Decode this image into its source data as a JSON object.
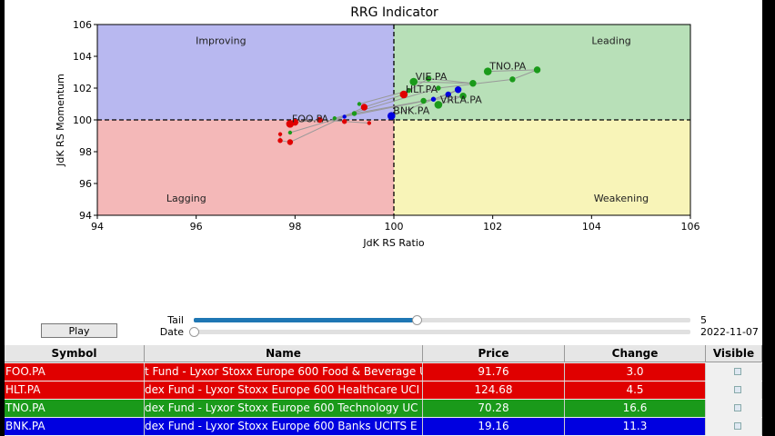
{
  "chart_data": {
    "type": "scatter",
    "title": "RRG Indicator",
    "xlabel": "JdK RS Ratio",
    "ylabel": "JdK RS Momentum",
    "xlim": [
      94,
      106
    ],
    "ylim": [
      94,
      106
    ],
    "xticks": [
      "94",
      "96",
      "98",
      "100",
      "102",
      "104",
      "106"
    ],
    "yticks": [
      "94",
      "96",
      "98",
      "100",
      "102",
      "104",
      "106"
    ],
    "quadrants": [
      {
        "name": "Improving",
        "color": "#b8b8f0"
      },
      {
        "name": "Leading",
        "color": "#b8e0b8"
      },
      {
        "name": "Lagging",
        "color": "#f4b8b8"
      },
      {
        "name": "Weakening",
        "color": "#f8f4b8"
      }
    ],
    "series": [
      {
        "name": "FOO.PA",
        "color": "#e00000",
        "points": [
          [
            99.5,
            99.8
          ],
          [
            99.0,
            99.9
          ],
          [
            98.5,
            100.0
          ],
          [
            98.0,
            99.85
          ],
          [
            97.9,
            99.75
          ]
        ]
      },
      {
        "name": "HLT.PA",
        "color": "#e00000",
        "points": [
          [
            97.7,
            99.1
          ],
          [
            97.7,
            98.7
          ],
          [
            97.9,
            98.6
          ],
          [
            99.4,
            100.8
          ],
          [
            100.2,
            101.6
          ]
        ]
      },
      {
        "name": "TNO.PA",
        "color": "#1a9a1a",
        "points": [
          [
            98.8,
            100.1
          ],
          [
            100.9,
            102.0
          ],
          [
            102.4,
            102.55
          ],
          [
            102.9,
            103.15
          ],
          [
            101.9,
            103.05
          ]
        ]
      },
      {
        "name": "VIE.PA",
        "color": "#1a9a1a",
        "points": [
          [
            99.3,
            101.0
          ],
          [
            100.3,
            101.85
          ],
          [
            100.7,
            102.6
          ],
          [
            101.6,
            102.3
          ],
          [
            100.4,
            102.4
          ]
        ]
      },
      {
        "name": "VRLA.PA",
        "color": "#1a9a1a",
        "points": [
          [
            97.9,
            99.2
          ],
          [
            99.2,
            100.4
          ],
          [
            100.6,
            101.2
          ],
          [
            101.4,
            101.5
          ],
          [
            100.9,
            100.95
          ]
        ]
      },
      {
        "name": "BNK.PA",
        "color": "#0000e0",
        "points": [
          [
            99.0,
            100.2
          ],
          [
            100.8,
            101.3
          ],
          [
            101.1,
            101.6
          ],
          [
            101.3,
            101.9
          ],
          [
            99.95,
            100.25
          ]
        ]
      }
    ]
  },
  "controls": {
    "play_label": "Play",
    "tail_label": "Tail",
    "tail_value": "5",
    "tail_fraction": 0.45,
    "date_label": "Date",
    "date_value": "2022-11-07",
    "date_fraction": 0.0
  },
  "table": {
    "headers": [
      "Symbol",
      "Name",
      "Price",
      "Change",
      "Visible"
    ],
    "rows": [
      {
        "symbol": "FOO.PA",
        "name": "t Fund - Lyxor Stoxx Europe 600 Food & Beverage U",
        "price": "91.76",
        "change": "3.0",
        "color": "#e00000"
      },
      {
        "symbol": "HLT.PA",
        "name": "dex Fund - Lyxor Stoxx Europe 600 Healthcare UCI",
        "price": "124.68",
        "change": "4.5",
        "color": "#e00000"
      },
      {
        "symbol": "TNO.PA",
        "name": "dex Fund - Lyxor Stoxx Europe 600 Technology UC",
        "price": "70.28",
        "change": "16.6",
        "color": "#1a9a1a"
      },
      {
        "symbol": "BNK.PA",
        "name": "dex Fund - Lyxor Stoxx Europe 600 Banks UCITS E",
        "price": "19.16",
        "change": "11.3",
        "color": "#0000e0"
      }
    ]
  }
}
